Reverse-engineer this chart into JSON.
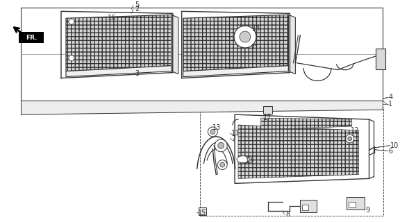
{
  "bg_color": "#ffffff",
  "lc": "#333333",
  "fig_width": 5.76,
  "fig_height": 3.2,
  "dpi": 100
}
